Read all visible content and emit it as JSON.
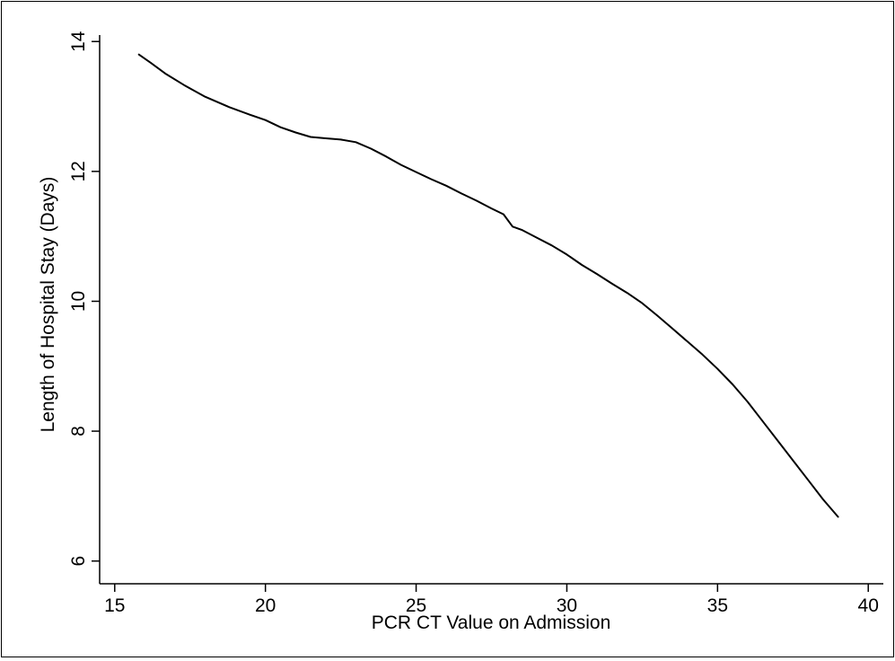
{
  "chart_data": {
    "type": "line",
    "title": "",
    "xlabel": "PCR CT Value on Admission",
    "ylabel": "Length of Hospital Stay (Days)",
    "xlim": [
      14.5,
      40.5
    ],
    "ylim": [
      5.65,
      14.1
    ],
    "x_ticks": [
      15,
      20,
      25,
      30,
      35,
      40
    ],
    "y_ticks": [
      6,
      8,
      10,
      12,
      14
    ],
    "grid": false,
    "legend": "none",
    "line_color": "#000000",
    "series": [
      {
        "x": [
          15.8,
          16.2,
          16.7,
          17.3,
          18.0,
          18.8,
          19.5,
          20.0,
          20.5,
          21.0,
          21.5,
          22.0,
          22.5,
          23.0,
          23.5,
          24.0,
          24.5,
          25.0,
          25.5,
          26.0,
          26.5,
          27.0,
          27.5,
          27.9,
          28.2,
          28.5,
          29.0,
          29.5,
          30.0,
          30.5,
          31.0,
          31.5,
          32.0,
          32.5,
          33.0,
          33.5,
          34.0,
          34.5,
          35.0,
          35.5,
          36.0,
          36.5,
          37.0,
          37.5,
          38.0,
          38.5,
          39.0
        ],
        "y": [
          13.8,
          13.67,
          13.5,
          13.33,
          13.15,
          12.99,
          12.87,
          12.79,
          12.68,
          12.6,
          12.53,
          12.51,
          12.49,
          12.45,
          12.35,
          12.23,
          12.1,
          11.99,
          11.88,
          11.78,
          11.66,
          11.55,
          11.43,
          11.34,
          11.15,
          11.1,
          10.98,
          10.86,
          10.72,
          10.56,
          10.42,
          10.27,
          10.13,
          9.97,
          9.78,
          9.58,
          9.38,
          9.18,
          8.96,
          8.72,
          8.45,
          8.15,
          7.85,
          7.55,
          7.25,
          6.95,
          6.68
        ]
      }
    ]
  }
}
